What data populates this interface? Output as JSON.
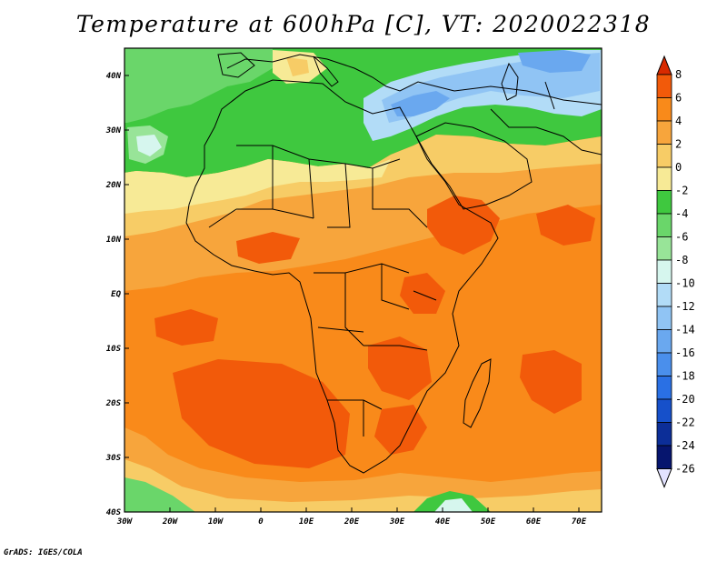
{
  "title": "Temperature at 600hPa [C], VT: 2020022318",
  "credit": "GrADS: IGES/COLA",
  "map": {
    "lon_range": [
      -30,
      75
    ],
    "lat_range": [
      -40,
      45
    ],
    "lat_labels": [
      "40N",
      "30N",
      "20N",
      "10N",
      "EQ",
      "10S",
      "20S",
      "30S",
      "40S"
    ],
    "lat_values": [
      40,
      30,
      20,
      10,
      0,
      -10,
      -20,
      -30,
      -40
    ],
    "lon_labels": [
      "30W",
      "20W",
      "10W",
      "0",
      "10E",
      "20E",
      "30E",
      "40E",
      "50E",
      "60E",
      "70E"
    ],
    "lon_values": [
      -30,
      -20,
      -10,
      0,
      10,
      20,
      30,
      40,
      50,
      60,
      70
    ]
  },
  "colorbar": {
    "levels": [
      "8",
      "6",
      "4",
      "2",
      "0",
      "-2",
      "-4",
      "-6",
      "-8",
      "-10",
      "-12",
      "-14",
      "-16",
      "-18",
      "-20",
      "-22",
      "-24",
      "-26"
    ],
    "colors": [
      "#d82a00",
      "#f25a0a",
      "#f98a1a",
      "#f7a53c",
      "#f7cc66",
      "#f7ea96",
      "#3fc83f",
      "#6ad66a",
      "#98e498",
      "#d6f6ee",
      "#b2dcf7",
      "#90c4f4",
      "#6aa8ef",
      "#4a8fec",
      "#2a70e4",
      "#1650ca",
      "#0c2e98",
      "#06156e",
      "#e2e2ff"
    ]
  }
}
